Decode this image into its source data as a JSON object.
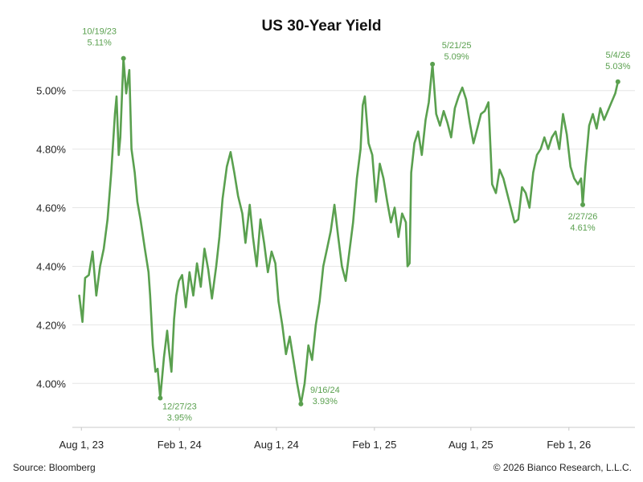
{
  "footer": {
    "source": "Source: Bloomberg",
    "copyright": "© 2026 Bianco Research, L.L.C."
  },
  "colors": {
    "line": "#5aa04f",
    "annotation": "#5aa04f",
    "grid": "#e6e6e6",
    "axis": "#c8c8c8"
  },
  "chart_data": {
    "type": "line",
    "title": "US 30-Year Yield",
    "xlabel": "",
    "ylabel": "",
    "x_range": [
      "2023-07-15",
      "2026-06-05"
    ],
    "ylim": [
      3.85,
      5.15
    ],
    "grid": {
      "y": true,
      "x": false
    },
    "legend": "none",
    "y_ticks": [
      {
        "value": 4.0,
        "label": "4.00%"
      },
      {
        "value": 4.2,
        "label": "4.20%"
      },
      {
        "value": 4.4,
        "label": "4.40%"
      },
      {
        "value": 4.6,
        "label": "4.60%"
      },
      {
        "value": 4.8,
        "label": "4.80%"
      },
      {
        "value": 5.0,
        "label": "5.00%"
      }
    ],
    "x_ticks": [
      {
        "date": "2023-08-01",
        "label": "Aug 1, 23"
      },
      {
        "date": "2024-02-01",
        "label": "Feb 1, 24"
      },
      {
        "date": "2024-08-01",
        "label": "Aug 1, 24"
      },
      {
        "date": "2025-02-01",
        "label": "Feb 1, 25"
      },
      {
        "date": "2025-08-01",
        "label": "Aug 1, 25"
      },
      {
        "date": "2026-02-01",
        "label": "Feb 1, 26"
      }
    ],
    "series": [
      {
        "points": [
          [
            "2023-07-28",
            4.3
          ],
          [
            "2023-08-03",
            4.21
          ],
          [
            "2023-08-08",
            4.36
          ],
          [
            "2023-08-15",
            4.37
          ],
          [
            "2023-08-22",
            4.45
          ],
          [
            "2023-08-29",
            4.3
          ],
          [
            "2023-09-05",
            4.4
          ],
          [
            "2023-09-12",
            4.46
          ],
          [
            "2023-09-19",
            4.56
          ],
          [
            "2023-09-26",
            4.72
          ],
          [
            "2023-10-03",
            4.92
          ],
          [
            "2023-10-06",
            4.98
          ],
          [
            "2023-10-10",
            4.78
          ],
          [
            "2023-10-13",
            4.84
          ],
          [
            "2023-10-19",
            5.11
          ],
          [
            "2023-10-24",
            4.99
          ],
          [
            "2023-10-30",
            5.07
          ],
          [
            "2023-11-03",
            4.8
          ],
          [
            "2023-11-09",
            4.72
          ],
          [
            "2023-11-14",
            4.62
          ],
          [
            "2023-11-20",
            4.56
          ],
          [
            "2023-11-28",
            4.46
          ],
          [
            "2023-12-05",
            4.38
          ],
          [
            "2023-12-08",
            4.3
          ],
          [
            "2023-12-13",
            4.13
          ],
          [
            "2023-12-18",
            4.04
          ],
          [
            "2023-12-22",
            4.05
          ],
          [
            "2023-12-27",
            3.95
          ],
          [
            "2024-01-03",
            4.09
          ],
          [
            "2024-01-09",
            4.18
          ],
          [
            "2024-01-12",
            4.12
          ],
          [
            "2024-01-17",
            4.04
          ],
          [
            "2024-01-22",
            4.22
          ],
          [
            "2024-01-26",
            4.3
          ],
          [
            "2024-01-31",
            4.35
          ],
          [
            "2024-02-06",
            4.37
          ],
          [
            "2024-02-13",
            4.26
          ],
          [
            "2024-02-20",
            4.38
          ],
          [
            "2024-02-27",
            4.3
          ],
          [
            "2024-03-05",
            4.41
          ],
          [
            "2024-03-12",
            4.33
          ],
          [
            "2024-03-19",
            4.46
          ],
          [
            "2024-03-26",
            4.39
          ],
          [
            "2024-04-02",
            4.29
          ],
          [
            "2024-04-10",
            4.4
          ],
          [
            "2024-04-16",
            4.5
          ],
          [
            "2024-04-22",
            4.63
          ],
          [
            "2024-04-30",
            4.74
          ],
          [
            "2024-05-07",
            4.79
          ],
          [
            "2024-05-14",
            4.72
          ],
          [
            "2024-05-21",
            4.64
          ],
          [
            "2024-05-29",
            4.58
          ],
          [
            "2024-06-04",
            4.48
          ],
          [
            "2024-06-12",
            4.61
          ],
          [
            "2024-06-18",
            4.5
          ],
          [
            "2024-06-25",
            4.4
          ],
          [
            "2024-07-02",
            4.56
          ],
          [
            "2024-07-09",
            4.48
          ],
          [
            "2024-07-16",
            4.38
          ],
          [
            "2024-07-23",
            4.45
          ],
          [
            "2024-07-30",
            4.41
          ],
          [
            "2024-08-05",
            4.28
          ],
          [
            "2024-08-12",
            4.2
          ],
          [
            "2024-08-19",
            4.1
          ],
          [
            "2024-08-26",
            4.16
          ],
          [
            "2024-09-02",
            4.08
          ],
          [
            "2024-09-09",
            4.0
          ],
          [
            "2024-09-16",
            3.93
          ],
          [
            "2024-09-23",
            4.0
          ],
          [
            "2024-09-30",
            4.13
          ],
          [
            "2024-10-07",
            4.08
          ],
          [
            "2024-10-14",
            4.2
          ],
          [
            "2024-10-21",
            4.28
          ],
          [
            "2024-10-28",
            4.4
          ],
          [
            "2024-11-04",
            4.46
          ],
          [
            "2024-11-11",
            4.52
          ],
          [
            "2024-11-18",
            4.61
          ],
          [
            "2024-11-25",
            4.5
          ],
          [
            "2024-12-02",
            4.4
          ],
          [
            "2024-12-09",
            4.35
          ],
          [
            "2024-12-16",
            4.45
          ],
          [
            "2024-12-23",
            4.55
          ],
          [
            "2024-12-30",
            4.7
          ],
          [
            "2025-01-06",
            4.8
          ],
          [
            "2025-01-10",
            4.95
          ],
          [
            "2025-01-14",
            4.98
          ],
          [
            "2025-01-21",
            4.82
          ],
          [
            "2025-01-28",
            4.78
          ],
          [
            "2025-02-04",
            4.62
          ],
          [
            "2025-02-11",
            4.75
          ],
          [
            "2025-02-18",
            4.7
          ],
          [
            "2025-02-25",
            4.62
          ],
          [
            "2025-03-04",
            4.55
          ],
          [
            "2025-03-11",
            4.6
          ],
          [
            "2025-03-18",
            4.5
          ],
          [
            "2025-03-25",
            4.58
          ],
          [
            "2025-04-01",
            4.55
          ],
          [
            "2025-04-04",
            4.4
          ],
          [
            "2025-04-08",
            4.41
          ],
          [
            "2025-04-11",
            4.72
          ],
          [
            "2025-04-17",
            4.82
          ],
          [
            "2025-04-24",
            4.86
          ],
          [
            "2025-05-01",
            4.78
          ],
          [
            "2025-05-08",
            4.9
          ],
          [
            "2025-05-14",
            4.96
          ],
          [
            "2025-05-21",
            5.09
          ],
          [
            "2025-05-28",
            4.92
          ],
          [
            "2025-06-04",
            4.88
          ],
          [
            "2025-06-11",
            4.93
          ],
          [
            "2025-06-18",
            4.89
          ],
          [
            "2025-06-25",
            4.84
          ],
          [
            "2025-07-02",
            4.94
          ],
          [
            "2025-07-09",
            4.98
          ],
          [
            "2025-07-16",
            5.01
          ],
          [
            "2025-07-23",
            4.97
          ],
          [
            "2025-07-30",
            4.89
          ],
          [
            "2025-08-06",
            4.82
          ],
          [
            "2025-08-13",
            4.87
          ],
          [
            "2025-08-20",
            4.92
          ],
          [
            "2025-08-27",
            4.93
          ],
          [
            "2025-09-03",
            4.96
          ],
          [
            "2025-09-10",
            4.68
          ],
          [
            "2025-09-17",
            4.65
          ],
          [
            "2025-09-24",
            4.73
          ],
          [
            "2025-10-01",
            4.7
          ],
          [
            "2025-10-08",
            4.65
          ],
          [
            "2025-10-15",
            4.6
          ],
          [
            "2025-10-22",
            4.55
          ],
          [
            "2025-10-29",
            4.56
          ],
          [
            "2025-11-05",
            4.67
          ],
          [
            "2025-11-12",
            4.65
          ],
          [
            "2025-11-19",
            4.6
          ],
          [
            "2025-11-26",
            4.72
          ],
          [
            "2025-12-03",
            4.78
          ],
          [
            "2025-12-10",
            4.8
          ],
          [
            "2025-12-17",
            4.84
          ],
          [
            "2025-12-24",
            4.8
          ],
          [
            "2025-12-31",
            4.84
          ],
          [
            "2026-01-07",
            4.86
          ],
          [
            "2026-01-14",
            4.8
          ],
          [
            "2026-01-21",
            4.92
          ],
          [
            "2026-01-28",
            4.85
          ],
          [
            "2026-02-04",
            4.74
          ],
          [
            "2026-02-11",
            4.7
          ],
          [
            "2026-02-18",
            4.68
          ],
          [
            "2026-02-24",
            4.7
          ],
          [
            "2026-02-27",
            4.61
          ],
          [
            "2026-03-04",
            4.74
          ],
          [
            "2026-03-11",
            4.88
          ],
          [
            "2026-03-18",
            4.92
          ],
          [
            "2026-03-25",
            4.87
          ],
          [
            "2026-04-01",
            4.94
          ],
          [
            "2026-04-08",
            4.9
          ],
          [
            "2026-04-15",
            4.93
          ],
          [
            "2026-04-22",
            4.96
          ],
          [
            "2026-04-29",
            4.99
          ],
          [
            "2026-05-04",
            5.03
          ]
        ]
      }
    ],
    "annotations": [
      {
        "date": "2023-10-19",
        "value": 5.11,
        "date_label": "10/19/23",
        "value_label": "5.11%",
        "position": "above-left"
      },
      {
        "date": "2023-12-27",
        "value": 3.95,
        "date_label": "12/27/23",
        "value_label": "3.95%",
        "position": "below-right"
      },
      {
        "date": "2024-09-16",
        "value": 3.93,
        "date_label": "9/16/24",
        "value_label": "3.93%",
        "position": "above-right"
      },
      {
        "date": "2025-05-21",
        "value": 5.09,
        "date_label": "5/21/25",
        "value_label": "5.09%",
        "position": "above-right"
      },
      {
        "date": "2026-02-27",
        "value": 4.61,
        "date_label": "2/27/26",
        "value_label": "4.61%",
        "position": "below"
      },
      {
        "date": "2026-05-04",
        "value": 5.03,
        "date_label": "5/4/26",
        "value_label": "5.03%",
        "position": "above"
      }
    ]
  }
}
